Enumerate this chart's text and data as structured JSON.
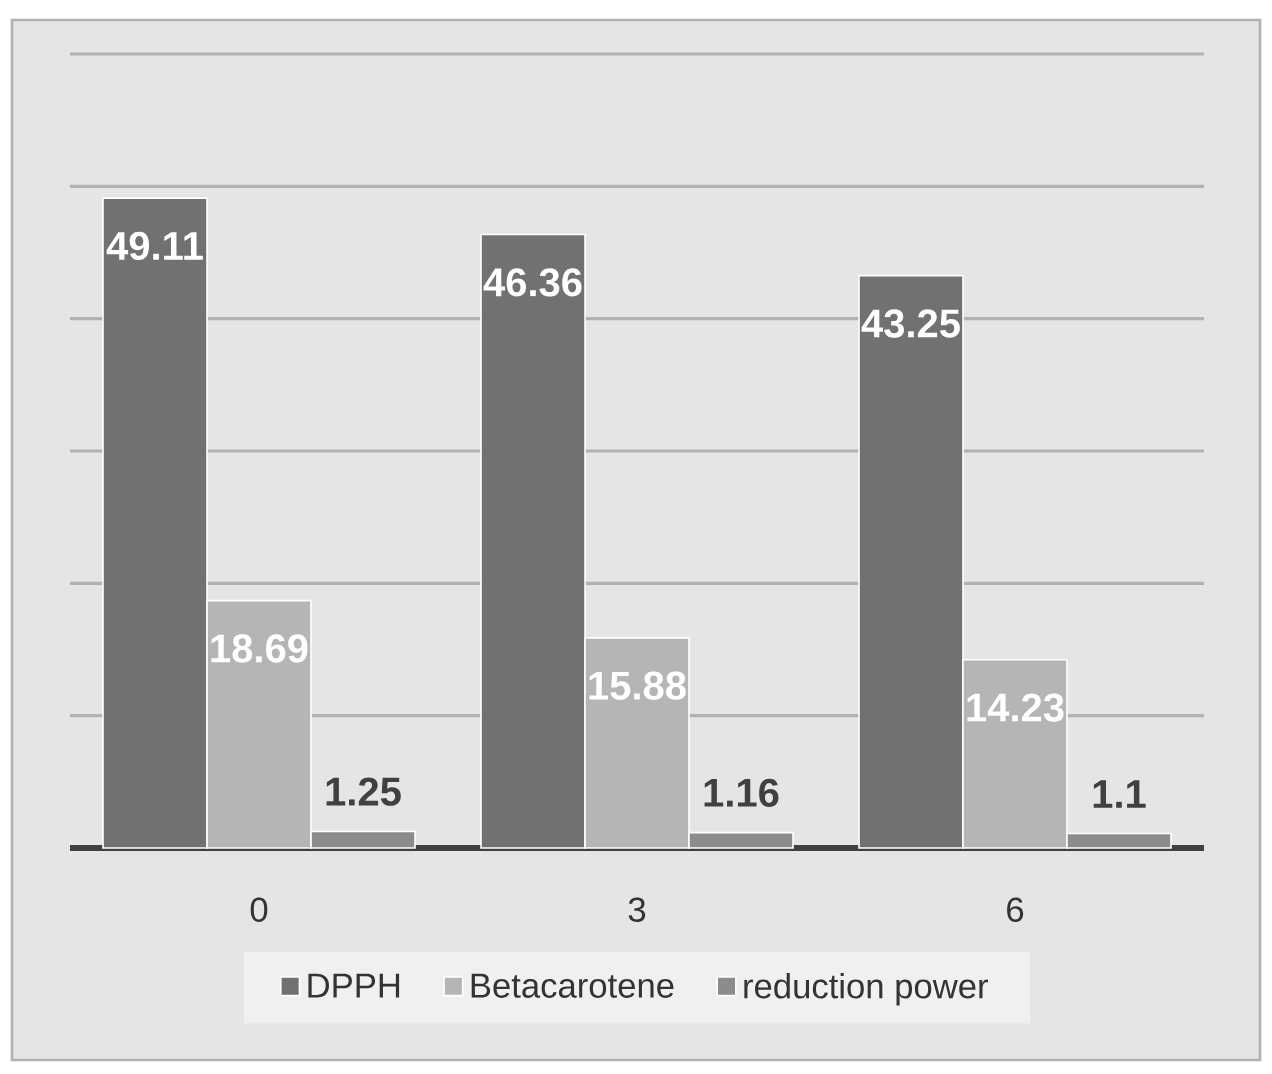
{
  "chart_data": {
    "type": "bar",
    "categories": [
      "0",
      "3",
      "6"
    ],
    "series": [
      {
        "name": "DPPH",
        "color": "#717171",
        "values": [
          49.11,
          46.36,
          43.25
        ]
      },
      {
        "name": "Betacarotene",
        "color": "#b5b5b5",
        "values": [
          18.69,
          15.88,
          14.23
        ]
      },
      {
        "name": "reduction power",
        "color": "#8c8c8c",
        "values": [
          1.25,
          1.16,
          1.1
        ]
      }
    ],
    "ylim": [
      0,
      60
    ],
    "yticks": [
      {
        "value": 0,
        "label": null
      },
      {
        "value": 10,
        "label": null
      },
      {
        "value": 20,
        "label": null
      },
      {
        "value": 30,
        "label": null
      },
      {
        "value": 40,
        "label": null
      },
      {
        "value": 50,
        "label": null
      },
      {
        "value": 60,
        "label": null
      }
    ],
    "tick_labels": "x",
    "grid": "y",
    "legend": "bottom",
    "data_labels": true
  }
}
